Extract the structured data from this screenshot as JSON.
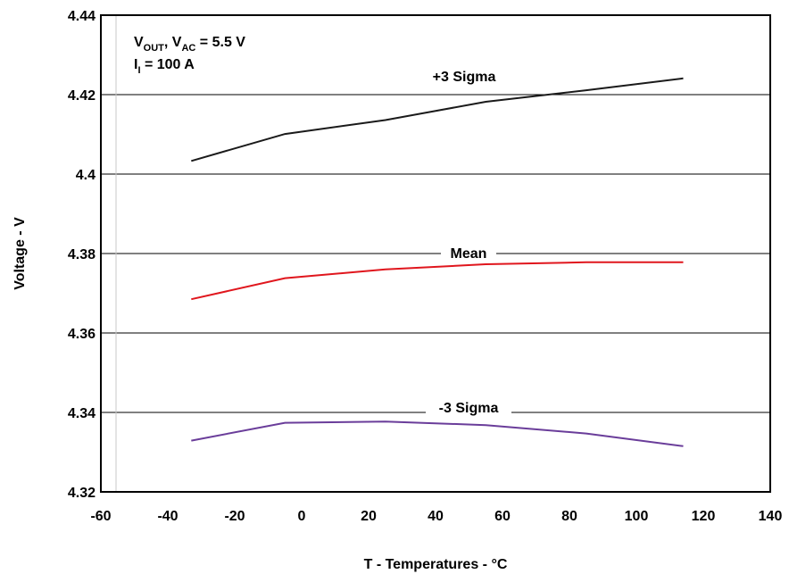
{
  "chart_data": {
    "type": "line",
    "title": "",
    "xlabel": "T - Temperatures - °C",
    "ylabel": "Voltage - V",
    "xlim": [
      -60,
      140
    ],
    "ylim": [
      4.32,
      4.44
    ],
    "x_ticks": [
      -60,
      -40,
      -20,
      0,
      20,
      40,
      60,
      80,
      100,
      120,
      140
    ],
    "x_tick_labels": [
      "-60",
      "-40",
      "-20",
      "0",
      "20",
      "40",
      "60",
      "80",
      "100",
      "120",
      "140"
    ],
    "y_ticks": [
      4.32,
      4.34,
      4.36,
      4.38,
      4.4,
      4.42,
      4.44
    ],
    "y_tick_labels": [
      "4.32",
      "4.34",
      "4.36",
      "4.38",
      "4.4",
      "4.42",
      "4.44"
    ],
    "grid": "horizontal",
    "annotation": {
      "line1": {
        "v": "V",
        "sub_out": "OUT",
        "comma": ", V",
        "sub_ac": "AC",
        "rest": " = 5.5 V"
      },
      "line2": {
        "i": "I",
        "sub_i": "I",
        "rest": " = 100 A"
      }
    },
    "series": [
      {
        "name": "+3 Sigma",
        "color": "#1a1a1a",
        "x": [
          -33,
          -5,
          25,
          55,
          85,
          114
        ],
        "y": [
          4.4033,
          4.4101,
          4.4136,
          4.4182,
          4.4211,
          4.4241
        ]
      },
      {
        "name": "Mean",
        "color": "#e0161d",
        "x": [
          -33,
          -5,
          25,
          55,
          85,
          114
        ],
        "y": [
          4.3685,
          4.3738,
          4.376,
          4.3773,
          4.3778,
          4.3778
        ]
      },
      {
        "name": "-3 Sigma",
        "color": "#6a3d9a",
        "x": [
          -33,
          -5,
          25,
          55,
          85,
          114
        ],
        "y": [
          4.3329,
          4.3374,
          4.3377,
          4.3368,
          4.3347,
          4.3315
        ]
      }
    ]
  }
}
